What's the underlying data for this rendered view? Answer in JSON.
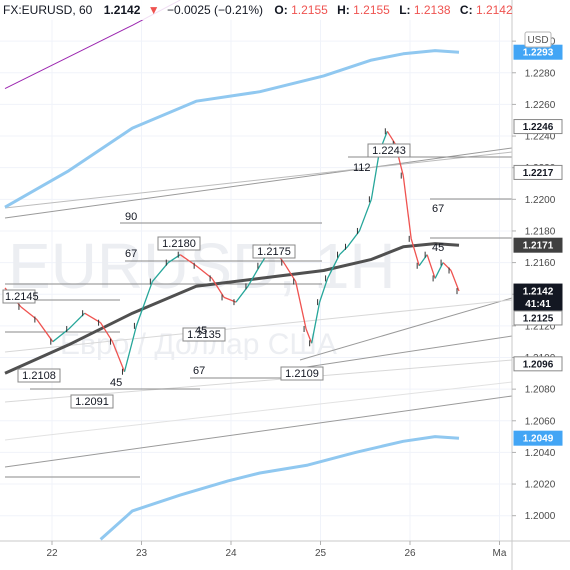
{
  "header": {
    "symbol": "FX:EURUSD, 60",
    "last": "1.2142",
    "change_arrow": "▼",
    "change": "−0.0025 (−0.21%)",
    "o_label": "O:",
    "o_value": "1.2155",
    "h_label": "H:",
    "h_value": "1.2155",
    "l_label": "L:",
    "l_value": "1.2138",
    "c_label": "C:",
    "c_value": "1.2142"
  },
  "watermark": {
    "main": "EURUSD, 1H",
    "sub": "Евро / Доллар США"
  },
  "currency_button": "USD",
  "colors": {
    "up": "#26a69a",
    "down": "#ef5350",
    "bb_band": "#90c8f0",
    "ma": "#505050",
    "purple": "#9c27b0",
    "badge": "#42a5f5"
  },
  "chart_data": {
    "type": "line",
    "instrument": "FX:EURUSD",
    "timeframe": "60",
    "x_ticks": [
      "22",
      "23",
      "24",
      "25",
      "26",
      "Ma"
    ],
    "y_ticks": [
      "1.2300",
      "1.2280",
      "1.2260",
      "1.2240",
      "1.2220",
      "1.2200",
      "1.2180",
      "1.2160",
      "1.2140",
      "1.2120",
      "1.2100",
      "1.2080",
      "1.2060",
      "1.2040",
      "1.2020",
      "1.2000"
    ],
    "ylim": [
      1.1984,
      1.2326
    ],
    "price_path": [
      [
        0.0,
        1.2144
      ],
      [
        0.2,
        1.2132
      ],
      [
        0.4,
        1.2124
      ],
      [
        0.6,
        1.211
      ],
      [
        0.8,
        1.2118
      ],
      [
        1.0,
        1.2128
      ],
      [
        1.2,
        1.2122
      ],
      [
        1.35,
        1.211
      ],
      [
        1.5,
        1.2091
      ],
      [
        1.65,
        1.212
      ],
      [
        1.85,
        1.2148
      ],
      [
        2.05,
        1.216
      ],
      [
        2.2,
        1.2165
      ],
      [
        2.4,
        1.2158
      ],
      [
        2.6,
        1.215
      ],
      [
        2.75,
        1.2138
      ],
      [
        2.9,
        1.2135
      ],
      [
        3.05,
        1.2145
      ],
      [
        3.2,
        1.2158
      ],
      [
        3.35,
        1.217
      ],
      [
        3.5,
        1.216
      ],
      [
        3.65,
        1.2148
      ],
      [
        3.78,
        1.2118
      ],
      [
        3.85,
        1.2109
      ],
      [
        3.95,
        1.2135
      ],
      [
        4.05,
        1.215
      ],
      [
        4.2,
        1.2165
      ],
      [
        4.3,
        1.217
      ],
      [
        4.45,
        1.218
      ],
      [
        4.6,
        1.22
      ],
      [
        4.7,
        1.223
      ],
      [
        4.8,
        1.2243
      ],
      [
        4.9,
        1.2235
      ],
      [
        5.0,
        1.2215
      ],
      [
        5.1,
        1.2175
      ],
      [
        5.2,
        1.2158
      ],
      [
        5.3,
        1.2165
      ],
      [
        5.4,
        1.215
      ],
      [
        5.5,
        1.216
      ],
      [
        5.6,
        1.2155
      ],
      [
        5.7,
        1.2142
      ]
    ],
    "series": [
      {
        "name": "",
        "role": "moving-average",
        "points": [
          [
            0.0,
            1.209
          ],
          [
            0.8,
            1.2108
          ],
          [
            1.6,
            1.2128
          ],
          [
            2.4,
            1.2145
          ],
          [
            3.2,
            1.215
          ],
          [
            4.0,
            1.2155
          ],
          [
            4.6,
            1.2162
          ],
          [
            5.0,
            1.217
          ],
          [
            5.4,
            1.2172
          ],
          [
            5.7,
            1.2171
          ]
        ]
      },
      {
        "name": "",
        "role": "upper-band",
        "points": [
          [
            0.0,
            1.2195
          ],
          [
            0.8,
            1.2218
          ],
          [
            1.6,
            1.2245
          ],
          [
            2.4,
            1.2262
          ],
          [
            3.2,
            1.2268
          ],
          [
            4.0,
            1.2278
          ],
          [
            4.6,
            1.2288
          ],
          [
            5.0,
            1.2292
          ],
          [
            5.4,
            1.2294
          ],
          [
            5.7,
            1.2293
          ]
        ]
      },
      {
        "name": "",
        "role": "lower-band",
        "points": [
          [
            1.2,
            1.1985
          ],
          [
            1.6,
            1.2003
          ],
          [
            2.2,
            1.2013
          ],
          [
            2.8,
            1.2022
          ],
          [
            3.2,
            1.2027
          ],
          [
            3.8,
            1.2032
          ],
          [
            4.4,
            1.204
          ],
          [
            5.0,
            1.2047
          ],
          [
            5.4,
            1.205
          ],
          [
            5.7,
            1.2049
          ]
        ]
      },
      {
        "name": "",
        "role": "upper-envelope",
        "points": [
          [
            0.0,
            1.227
          ],
          [
            0.8,
            1.229
          ],
          [
            1.6,
            1.231
          ],
          [
            2.2,
            1.2326
          ]
        ]
      }
    ],
    "price_tags": [
      {
        "value": "1.2293",
        "style": "blue"
      },
      {
        "value": "1.2246",
        "style": "gray"
      },
      {
        "value": "1.2217",
        "style": "gray"
      },
      {
        "value": "1.2171",
        "style": "dark"
      },
      {
        "value": "1.2142",
        "time": "41:41",
        "style": "black"
      },
      {
        "value": "1.2125",
        "style": "gray"
      },
      {
        "value": "1.2096",
        "style": "gray"
      },
      {
        "value": "1.2049",
        "style": "blue"
      }
    ],
    "annotations": [
      {
        "text": "1.2243",
        "kind": "boxed"
      },
      {
        "text": "1.2180",
        "kind": "boxed"
      },
      {
        "text": "1.2175",
        "kind": "boxed"
      },
      {
        "text": "1.2145",
        "kind": "boxed"
      },
      {
        "text": "1.2135",
        "kind": "boxed"
      },
      {
        "text": "1.2108",
        "kind": "boxed"
      },
      {
        "text": "1.2109",
        "kind": "boxed"
      },
      {
        "text": "1.2091",
        "kind": "boxed"
      },
      {
        "text": "112",
        "kind": "plain"
      },
      {
        "text": "90",
        "kind": "plain"
      },
      {
        "text": "67",
        "kind": "plain"
      },
      {
        "text": "67",
        "kind": "plain"
      },
      {
        "text": "67",
        "kind": "plain"
      },
      {
        "text": "45",
        "kind": "plain"
      },
      {
        "text": "45",
        "kind": "plain"
      },
      {
        "text": "45",
        "kind": "plain"
      }
    ]
  }
}
